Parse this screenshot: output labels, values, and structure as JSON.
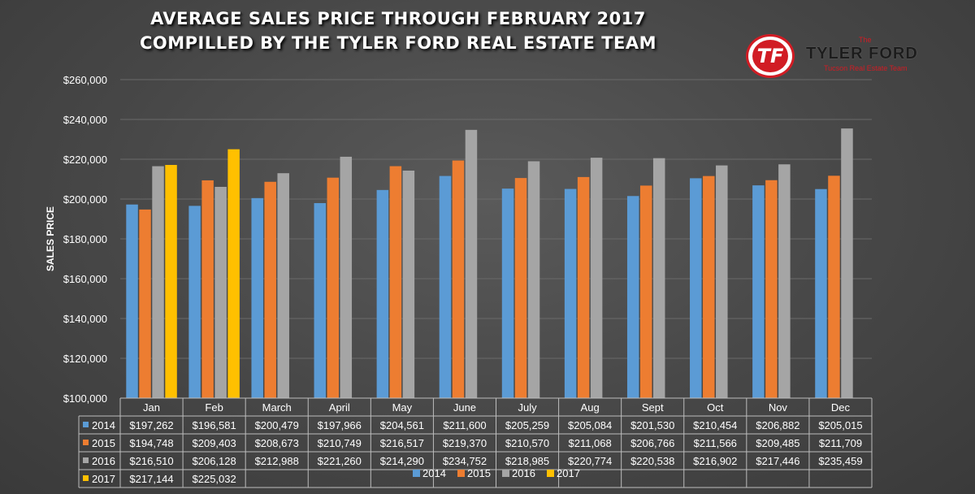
{
  "title": {
    "line1": "AVERAGE SALES PRICE THROUGH FEBRUARY 2017",
    "line2": "COMPILLED BY THE TYLER FORD REAL ESTATE TEAM"
  },
  "logo": {
    "monogram": "TF",
    "the": "The",
    "name": "TYLER FORD",
    "tagline": "Tucson Real Estate Team"
  },
  "colors": {
    "2014": "#5b9bd5",
    "2015": "#ed7d31",
    "2016": "#a5a5a5",
    "2017": "#ffc000",
    "text": "#ffffff",
    "grid": "#6a6a6a"
  },
  "chart_data": {
    "type": "bar",
    "categories": [
      "Jan",
      "Feb",
      "March",
      "April",
      "May",
      "June",
      "July",
      "Aug",
      "Sept",
      "Oct",
      "Nov",
      "Dec"
    ],
    "series": [
      {
        "name": "2014",
        "values": [
          197262,
          196581,
          200479,
          197966,
          204561,
          211600,
          205259,
          205084,
          201530,
          210454,
          206882,
          205015
        ],
        "labels": [
          "$197,262",
          "$196,581",
          "$200,479",
          "$197,966",
          "$204,561",
          "$211,600",
          "$205,259",
          "$205,084",
          "$201,530",
          "$210,454",
          "$206,882",
          "$205,015"
        ]
      },
      {
        "name": "2015",
        "values": [
          194748,
          209403,
          208673,
          210749,
          216517,
          219370,
          210570,
          211068,
          206766,
          211566,
          209485,
          211709
        ],
        "labels": [
          "$194,748",
          "$209,403",
          "$208,673",
          "$210,749",
          "$216,517",
          "$219,370",
          "$210,570",
          "$211,068",
          "$206,766",
          "$211,566",
          "$209,485",
          "$211,709"
        ]
      },
      {
        "name": "2016",
        "values": [
          216510,
          206128,
          212988,
          221260,
          214290,
          234752,
          218985,
          220774,
          220538,
          216902,
          217446,
          235459
        ],
        "labels": [
          "$216,510",
          "$206,128",
          "$212,988",
          "$221,260",
          "$214,290",
          "$234,752",
          "$218,985",
          "$220,774",
          "$220,538",
          "$216,902",
          "$217,446",
          "$235,459"
        ]
      },
      {
        "name": "2017",
        "values": [
          217144,
          225032,
          null,
          null,
          null,
          null,
          null,
          null,
          null,
          null,
          null,
          null
        ],
        "labels": [
          "$217,144",
          "$225,032",
          "",
          "",
          "",
          "",
          "",
          "",
          "",
          "",
          "",
          ""
        ]
      }
    ],
    "ylabel": "SALES PRICE",
    "xlabel": "",
    "ylim": [
      100000,
      260000
    ],
    "yticks": [
      100000,
      120000,
      140000,
      160000,
      180000,
      200000,
      220000,
      240000,
      260000
    ],
    "ytick_labels": [
      "$100,000",
      "$120,000",
      "$140,000",
      "$160,000",
      "$180,000",
      "$200,000",
      "$220,000",
      "$240,000",
      "$260,000"
    ],
    "grid": true,
    "legend": "bottom",
    "data_table": true
  }
}
